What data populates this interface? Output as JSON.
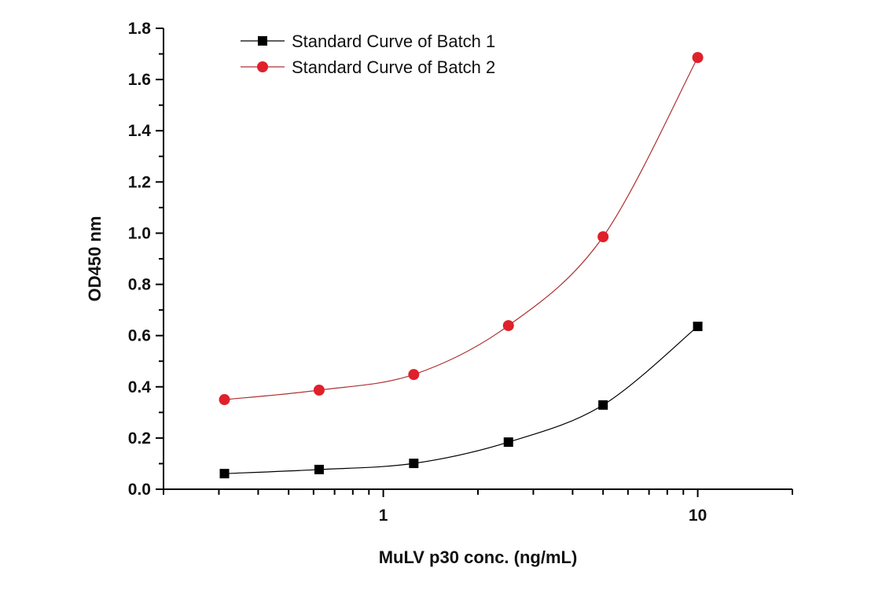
{
  "chart_data": {
    "type": "line",
    "title": "",
    "xlabel": "MuLV p30 conc. (ng/mL)",
    "ylabel": "OD450 nm",
    "xscale": "log",
    "xlim": [
      0.2,
      20
    ],
    "ylim": [
      0,
      1.8
    ],
    "xticks": [
      {
        "value": 1,
        "label": "1"
      },
      {
        "value": 10,
        "label": "10"
      }
    ],
    "yticks": [
      {
        "value": 0.0,
        "label": "0.0"
      },
      {
        "value": 0.2,
        "label": "0.2"
      },
      {
        "value": 0.4,
        "label": "0.4"
      },
      {
        "value": 0.6,
        "label": "0.6"
      },
      {
        "value": 0.8,
        "label": "0.8"
      },
      {
        "value": 1.0,
        "label": "1.0"
      },
      {
        "value": 1.2,
        "label": "1.2"
      },
      {
        "value": 1.4,
        "label": "1.4"
      },
      {
        "value": 1.6,
        "label": "1.6"
      },
      {
        "value": 1.8,
        "label": "1.8"
      }
    ],
    "grid": false,
    "legend_position": "top-left",
    "x": [
      0.3125,
      0.625,
      1.25,
      2.5,
      5,
      10
    ],
    "series": [
      {
        "name": "Standard Curve of Batch 1",
        "color": "#000000",
        "marker": "square",
        "values": [
          0.061,
          0.077,
          0.101,
          0.184,
          0.329,
          0.636
        ]
      },
      {
        "name": "Standard Curve of Batch 2",
        "color": "#e0202a",
        "line_color": "#b03030",
        "marker": "circle",
        "values": [
          0.35,
          0.387,
          0.448,
          0.639,
          0.986,
          1.686
        ]
      }
    ]
  }
}
